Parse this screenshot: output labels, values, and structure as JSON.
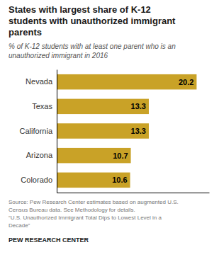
{
  "chart_data": {
    "type": "bar",
    "orientation": "horizontal",
    "title": "States with largest share of K-12\nstudents with unauthorized immigrant\nparents",
    "subtitle": "% of K-12 students with at least one parent who is an\nunauthorized immigrant in 2016",
    "categories": [
      "Nevada",
      "Texas",
      "California",
      "Arizona",
      "Colorado"
    ],
    "values": [
      20.2,
      13.3,
      13.3,
      10.7,
      10.6
    ],
    "color": "#C9A227",
    "xlim": [
      0,
      22
    ],
    "data_labels": true,
    "tick_labels": "y",
    "annotations": [
      "Source: Pew Research Center estimates based on augmented U.S.\nCensus Bureau data. See Methodology for details.\n“U.S. Unauthorized Immigrant Total Dips to Lowest Level in a\nDecade”",
      "PEW RESEARCH CENTER"
    ]
  }
}
